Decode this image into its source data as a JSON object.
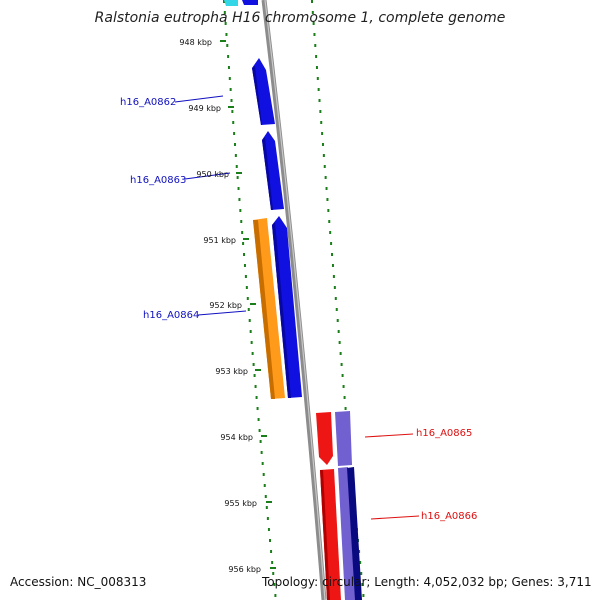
{
  "title": "Ralstonia eutropha H16 chromosome 1, complete genome",
  "footer": {
    "accession": "Accession: NC_008313",
    "stats": "Topology: circular; Length: 4,052,032 bp; Genes: 3,711"
  },
  "colors": {
    "backbone": "#8c8c8c",
    "tick": "#1a7f1a",
    "gene_blue": "#1010e0",
    "gene_orange": "#ff9a1a",
    "gene_red": "#ee1515",
    "gene_purple": "#7060d0",
    "gene_navy": "#0a0a80",
    "gene_cyan": "#33d6e6",
    "label_blue": "#1010c0",
    "label_red": "#dd1010"
  },
  "scale": {
    "unit": "kbp",
    "ticks": [
      "948 kbp",
      "949 kbp",
      "950 kbp",
      "951 kbp",
      "952 kbp",
      "953 kbp",
      "954 kbp",
      "955 kbp",
      "956 kbp"
    ]
  },
  "gene_labels": [
    {
      "id": "h16_A0862",
      "text": "h16_A0862",
      "strand": "forward"
    },
    {
      "id": "h16_A0863",
      "text": "h16_A0863",
      "strand": "forward"
    },
    {
      "id": "h16_A0864",
      "text": "h16_A0864",
      "strand": "forward"
    },
    {
      "id": "h16_A0865",
      "text": "h16_A0865",
      "strand": "reverse"
    },
    {
      "id": "h16_A0866",
      "text": "h16_A0866",
      "strand": "reverse"
    }
  ]
}
